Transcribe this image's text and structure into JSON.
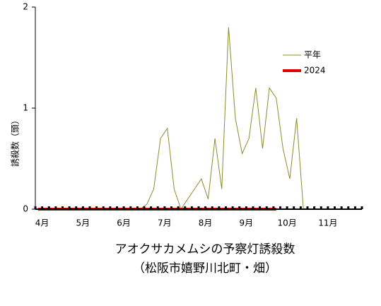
{
  "chart_data": {
    "type": "line",
    "title": "アオクサカメムシの予察灯誘殺数",
    "subtitle": "（松阪市嬉野川北町・畑）",
    "y_label": "誘殺数（頭）",
    "categories": [
      null,
      "4月",
      null,
      null,
      null,
      null,
      null,
      "5月",
      null,
      null,
      null,
      null,
      null,
      "6月",
      null,
      null,
      null,
      null,
      null,
      "7月",
      null,
      null,
      null,
      null,
      null,
      "8月",
      null,
      null,
      null,
      null,
      null,
      "9月",
      null,
      null,
      null,
      null,
      null,
      "10月",
      null,
      null,
      null,
      null,
      null,
      "11月",
      null,
      null,
      null,
      null
    ],
    "series": [
      {
        "name": "平年",
        "color": "#8c8c2e",
        "values": [
          0,
          0,
          0,
          0,
          0,
          0,
          0,
          0,
          0,
          0,
          0,
          0,
          0,
          0,
          0,
          0,
          0.05,
          0.2,
          0.7,
          0.8,
          0.2,
          0,
          0.1,
          0.2,
          0.3,
          0.1,
          0.7,
          0.2,
          1.8,
          0.9,
          0.55,
          0.7,
          1.2,
          0.6,
          1.2,
          1.1,
          0.6,
          0.3,
          0.9,
          0,
          0,
          0,
          0,
          0,
          0,
          0,
          0,
          0
        ]
      },
      {
        "name": "2024",
        "color": "#e00000",
        "values": [
          0,
          0,
          0,
          0,
          0,
          0,
          0,
          0,
          0,
          0,
          0,
          0,
          0,
          0,
          0,
          0,
          0,
          0,
          0,
          0,
          0,
          0,
          0,
          0,
          0,
          0,
          0,
          0,
          0,
          0,
          0,
          0,
          0,
          0,
          0,
          0,
          null,
          null,
          null,
          null,
          null,
          null,
          null,
          null,
          null,
          null,
          null,
          null
        ]
      }
    ],
    "ylim": [
      0,
      2
    ],
    "yticks": [
      0,
      1,
      2
    ],
    "legend": "upper right"
  }
}
